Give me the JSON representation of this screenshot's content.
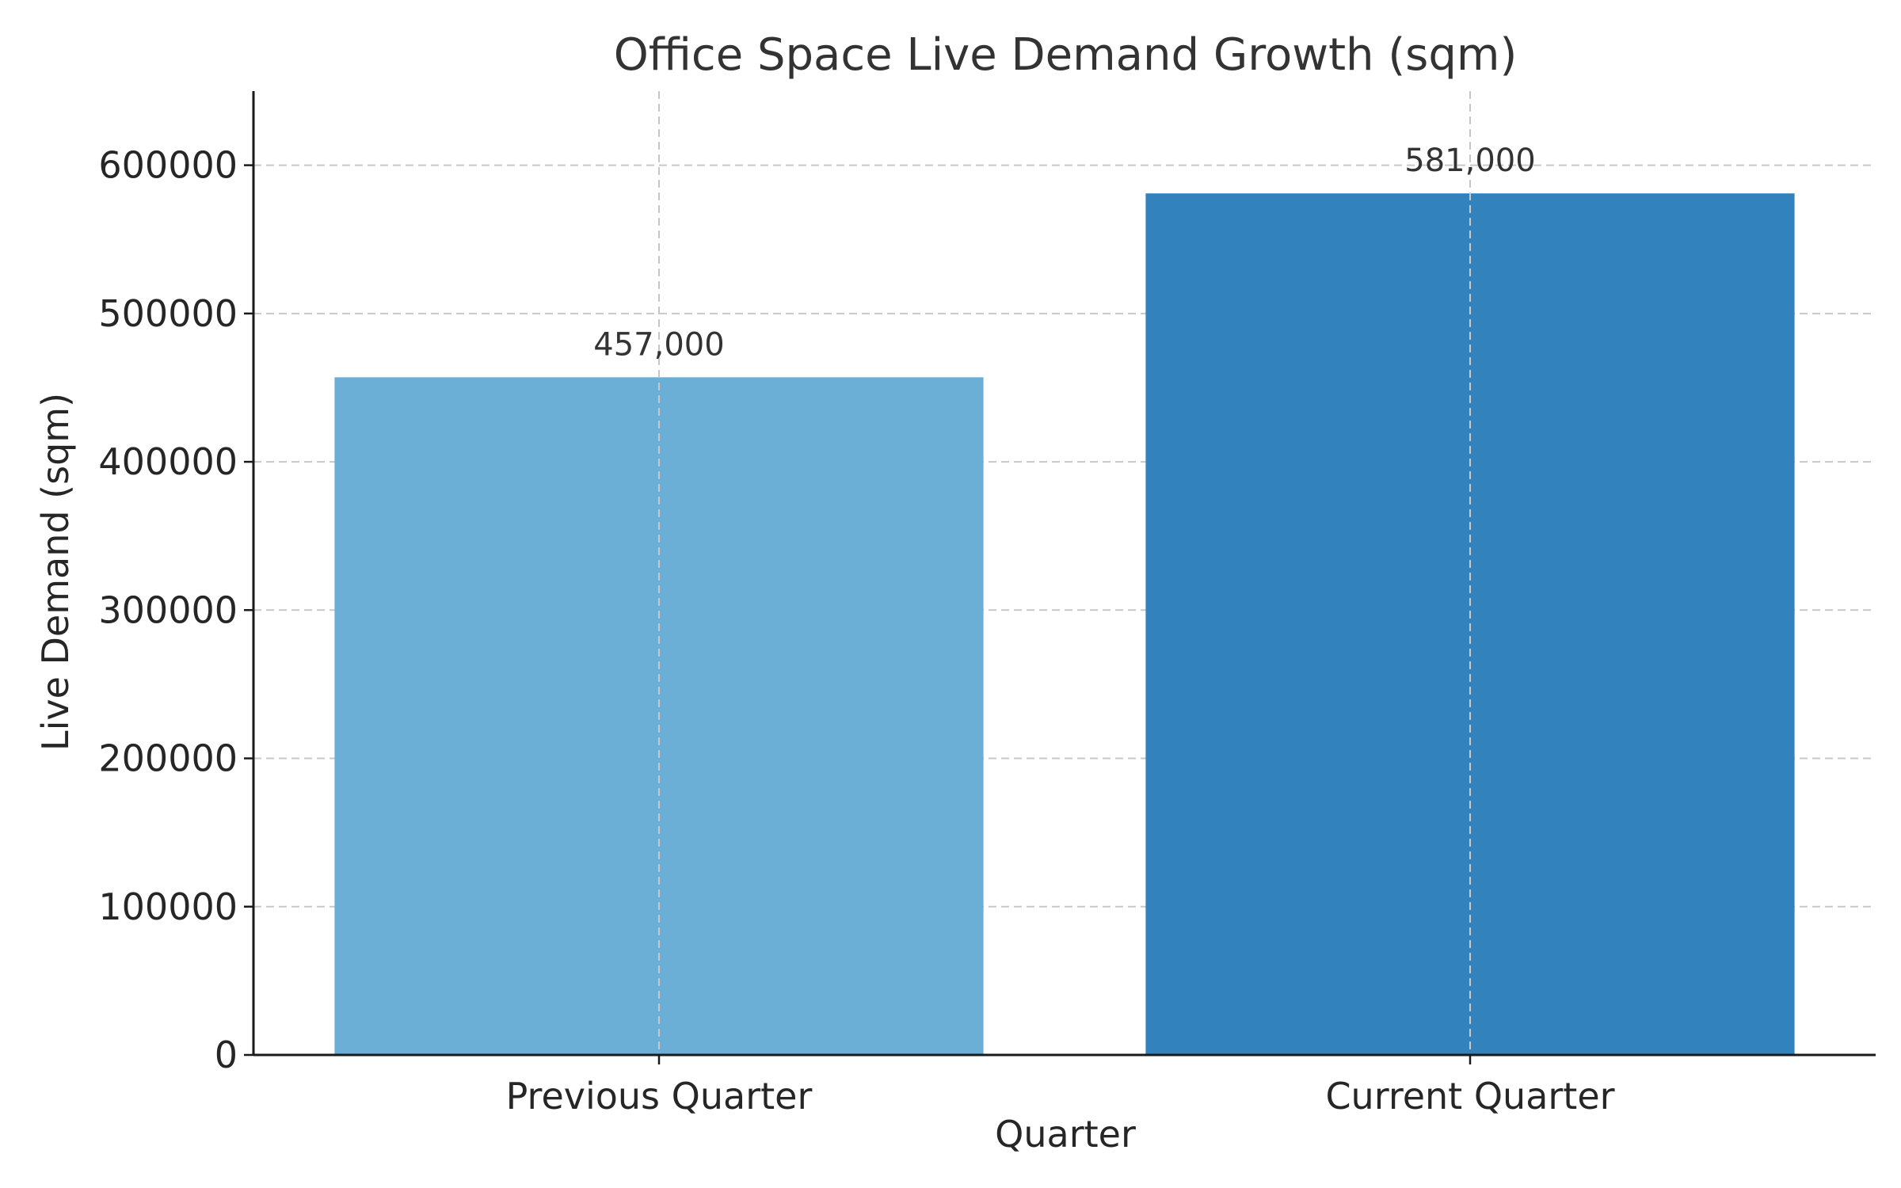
{
  "chart_data": {
    "type": "bar",
    "title": "Office Space Live Demand Growth (sqm)",
    "xlabel": "Quarter",
    "ylabel": "Live Demand (sqm)",
    "categories": [
      "Previous Quarter",
      "Current Quarter"
    ],
    "values": [
      457000,
      581000
    ],
    "data_labels": [
      "457,000",
      "581,000"
    ],
    "bar_colors": [
      "#6baed6",
      "#3182bd"
    ],
    "ylim": [
      0,
      650000
    ],
    "yticks": [
      0,
      100000,
      200000,
      300000,
      400000,
      500000,
      600000
    ],
    "ytick_labels": [
      "0",
      "100000",
      "200000",
      "300000",
      "400000",
      "500000",
      "600000"
    ],
    "grid": true,
    "legend": false
  }
}
